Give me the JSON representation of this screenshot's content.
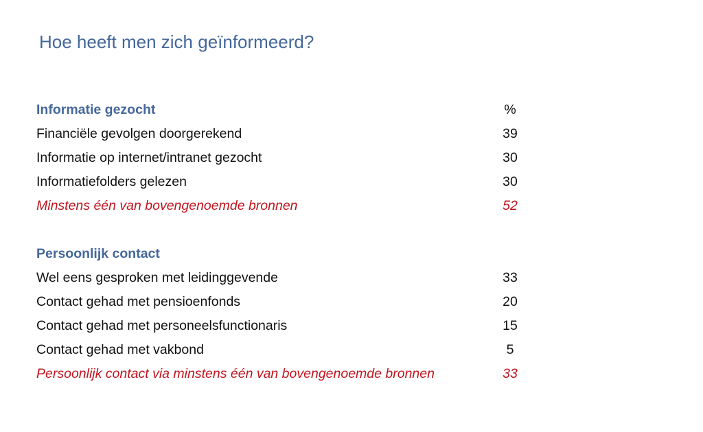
{
  "title": "Hoe heeft men zich geïnformeerd?",
  "sections": [
    {
      "heading": "Informatie gezocht",
      "unit": "%",
      "rows": [
        {
          "label": "Financiële gevolgen doorgerekend",
          "value": "39"
        },
        {
          "label": "Informatie op internet/intranet gezocht",
          "value": "30"
        },
        {
          "label": "Informatiefolders gelezen",
          "value": "30"
        }
      ],
      "summary": {
        "label": "Minstens één van bovengenoemde bronnen",
        "value": "52"
      }
    },
    {
      "heading": "Persoonlijk contact",
      "rows": [
        {
          "label": "Wel eens gesproken met leidinggevende",
          "value": "33"
        },
        {
          "label": "Contact gehad met pensioenfonds",
          "value": "20"
        },
        {
          "label": "Contact gehad met personeelsfunctionaris",
          "value": "15"
        },
        {
          "label": "Contact gehad met vakbond",
          "value": "5"
        }
      ],
      "summary": {
        "label": "Persoonlijk contact via minstens één van bovengenoemde bronnen",
        "value": "33"
      }
    }
  ],
  "colors": {
    "heading": "#44679a",
    "summary": "#c0141e"
  }
}
